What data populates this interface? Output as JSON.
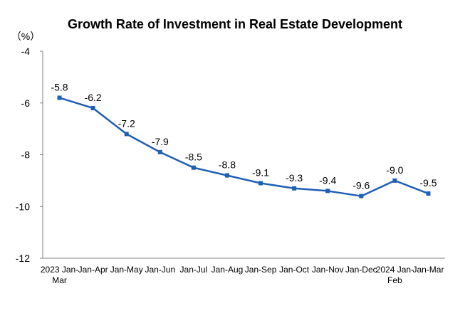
{
  "chart_data": {
    "type": "line",
    "title": "Growth Rate of Investment in Real Estate Development",
    "ylabel": "（%）",
    "xlabel": "",
    "ylim": [
      -12,
      -4
    ],
    "yticks": [
      -4,
      -6,
      -8,
      -10,
      -12
    ],
    "grid": false,
    "legend": "none",
    "categories": [
      [
        "2023 Jan-",
        "Mar"
      ],
      [
        "Jan-Apr"
      ],
      [
        "Jan-May"
      ],
      [
        "Jan-Jun"
      ],
      [
        "Jan-Jul"
      ],
      [
        "Jan-Aug"
      ],
      [
        "Jan-Sep"
      ],
      [
        "Jan-Oct"
      ],
      [
        "Jan-Nov"
      ],
      [
        "Jan-Dec"
      ],
      [
        "2024 Jan-",
        "Feb"
      ],
      [
        "Jan-Mar"
      ]
    ],
    "series": [
      {
        "values": [
          -5.8,
          -6.2,
          -7.2,
          -7.9,
          -8.5,
          -8.8,
          -9.1,
          -9.3,
          -9.4,
          -9.6,
          -9.0,
          -9.5
        ],
        "labels": [
          "-5.8",
          "-6.2",
          "-7.2",
          "-7.9",
          "-8.5",
          "-8.8",
          "-9.1",
          "-9.3",
          "-9.4",
          "-9.6",
          "-9.0",
          "-9.5"
        ],
        "color": "#1f5fb4"
      }
    ]
  }
}
